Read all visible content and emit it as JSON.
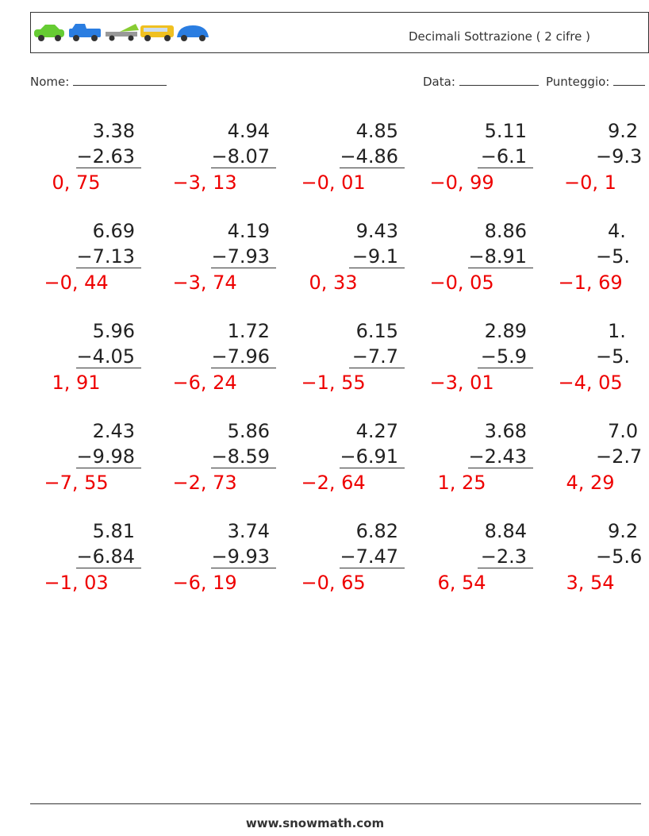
{
  "header": {
    "title": "Decimali Sottrazione ( 2 cifre )",
    "name_label": "Nome:",
    "date_label": "Data:",
    "score_label": "Punteggio:"
  },
  "problems": [
    [
      {
        "top": "3.38",
        "bottom": "−2.63",
        "answer": "0, 75"
      },
      {
        "top": "4.94",
        "bottom": "−8.07",
        "answer": "−3, 13"
      },
      {
        "top": "4.85",
        "bottom": "−4.86",
        "answer": "−0, 01"
      },
      {
        "top": "5.11",
        "bottom": "−6.1",
        "answer": "−0, 99"
      },
      {
        "top": "9.2",
        "bottom": "−9.3",
        "answer": "−0, 1"
      }
    ],
    [
      {
        "top": "6.69",
        "bottom": "−7.13",
        "answer": "−0, 44"
      },
      {
        "top": "4.19",
        "bottom": "−7.93",
        "answer": "−3, 74"
      },
      {
        "top": "9.43",
        "bottom": "−9.1",
        "answer": "0, 33"
      },
      {
        "top": "8.86",
        "bottom": "−8.91",
        "answer": "−0, 05"
      },
      {
        "top": "4.",
        "bottom": "−5.",
        "answer": "−1, 69"
      }
    ],
    [
      {
        "top": "5.96",
        "bottom": "−4.05",
        "answer": "1, 91"
      },
      {
        "top": "1.72",
        "bottom": "−7.96",
        "answer": "−6, 24"
      },
      {
        "top": "6.15",
        "bottom": "−7.7",
        "answer": "−1, 55"
      },
      {
        "top": "2.89",
        "bottom": "−5.9",
        "answer": "−3, 01"
      },
      {
        "top": "1.",
        "bottom": "−5.",
        "answer": "−4, 05"
      }
    ],
    [
      {
        "top": "2.43",
        "bottom": "−9.98",
        "answer": "−7, 55"
      },
      {
        "top": "5.86",
        "bottom": "−8.59",
        "answer": "−2, 73"
      },
      {
        "top": "4.27",
        "bottom": "−6.91",
        "answer": "−2, 64"
      },
      {
        "top": "3.68",
        "bottom": "−2.43",
        "answer": "1, 25"
      },
      {
        "top": "7.0",
        "bottom": "−2.7",
        "answer": "4, 29"
      }
    ],
    [
      {
        "top": "5.81",
        "bottom": "−6.84",
        "answer": "−1, 03"
      },
      {
        "top": "3.74",
        "bottom": "−9.93",
        "answer": "−6, 19"
      },
      {
        "top": "6.82",
        "bottom": "−7.47",
        "answer": "−0, 65"
      },
      {
        "top": "8.84",
        "bottom": "−2.3",
        "answer": "6, 54"
      },
      {
        "top": "9.2",
        "bottom": "−5.6",
        "answer": "3, 54"
      }
    ]
  ],
  "footer": {
    "url": "www.snowmath.com"
  }
}
